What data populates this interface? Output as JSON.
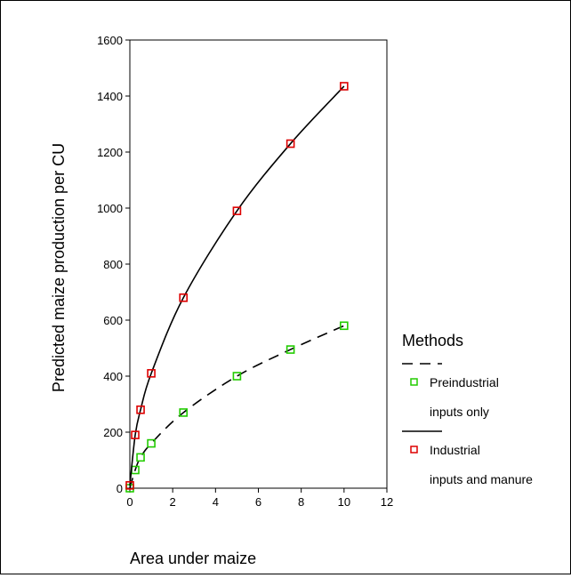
{
  "chart_data": {
    "type": "line",
    "title": "",
    "xlabel": "Area under maize",
    "ylabel": "Predicted maize production per CU",
    "xlim": [
      0,
      12
    ],
    "ylim": [
      0,
      1600
    ],
    "x_ticks": [
      "0",
      "2",
      "4",
      "6",
      "8",
      "10",
      "12"
    ],
    "y_ticks": [
      "0",
      "200",
      "400",
      "600",
      "800",
      "1000",
      "1200",
      "1400",
      "1600"
    ],
    "grid": false,
    "legend": {
      "title": "Methods",
      "placement": "right",
      "entries": [
        {
          "line1": "Preindustrial",
          "line2": "inputs only"
        },
        {
          "line1": "Industrial",
          "line2": "inputs and manure"
        }
      ]
    },
    "series": [
      {
        "line_style": "dashed",
        "marker_color": "#22cc00",
        "points": [
          {
            "x": 0,
            "y": 0
          },
          {
            "x": 0.25,
            "y": 65
          },
          {
            "x": 0.5,
            "y": 110
          },
          {
            "x": 1,
            "y": 160
          },
          {
            "x": 2.5,
            "y": 270
          },
          {
            "x": 5,
            "y": 400
          },
          {
            "x": 7.5,
            "y": 495
          },
          {
            "x": 10,
            "y": 580
          }
        ]
      },
      {
        "line_style": "solid",
        "marker_color": "#dd0000",
        "points": [
          {
            "x": 0,
            "y": 10
          },
          {
            "x": 0.25,
            "y": 190
          },
          {
            "x": 0.5,
            "y": 280
          },
          {
            "x": 1,
            "y": 410
          },
          {
            "x": 2.5,
            "y": 680
          },
          {
            "x": 5,
            "y": 990
          },
          {
            "x": 7.5,
            "y": 1230
          },
          {
            "x": 10,
            "y": 1435
          }
        ]
      }
    ]
  }
}
